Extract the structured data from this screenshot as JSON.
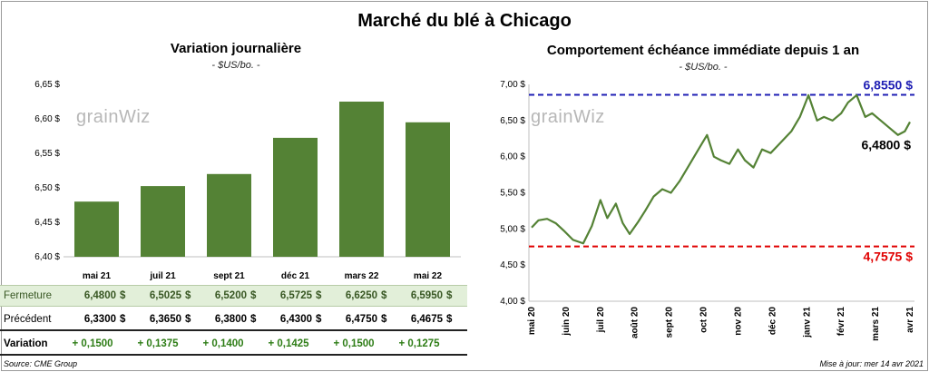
{
  "title": "Marché du blé à Chicago",
  "left": {
    "title": "Variation journalière",
    "unit": "- $US/bo. -",
    "watermark": "grainWiz"
  },
  "right": {
    "title": "Comportement  échéance immédiate depuis 1 an",
    "unit": "- $US/bo. -",
    "watermark": "grainWiz"
  },
  "table": {
    "rows": [
      {
        "label": "Fermeture",
        "values": [
          "6,4800",
          "6,5025",
          "6,5200",
          "6,5725",
          "6,6250",
          "6,5950"
        ],
        "suffix": "$"
      },
      {
        "label": "Précédent",
        "values": [
          "6,3300",
          "6,3650",
          "6,3800",
          "6,4300",
          "6,4750",
          "6,4675"
        ],
        "suffix": "$"
      },
      {
        "label": "Variation",
        "values": [
          "+ 0,1500",
          "+ 0,1375",
          "+ 0,1400",
          "+ 0,1425",
          "+ 0,1500",
          "+ 0,1275"
        ]
      }
    ]
  },
  "footer": {
    "source": "Source: CME Group",
    "updated": "Mise à jour: mer 14 avr 2021"
  },
  "colors": {
    "bar": "#548235",
    "line": "#548235",
    "max_line": "#1f1fb4",
    "min_line": "#e00000",
    "table_green": "#e2efd9",
    "variation_text": "#2e7d16"
  },
  "chart_data": [
    {
      "type": "bar",
      "title": "Variation journalière",
      "categories": [
        "mai 21",
        "juil 21",
        "sept 21",
        "déc 21",
        "mars 22",
        "mai 22"
      ],
      "values": [
        6.48,
        6.5025,
        6.52,
        6.5725,
        6.625,
        6.595
      ],
      "ylim": [
        6.4,
        6.65
      ],
      "yticks": [
        "6,40 $",
        "6,45 $",
        "6,50 $",
        "6,55 $",
        "6,60 $",
        "6,65 $"
      ],
      "grid": false
    },
    {
      "type": "line",
      "title": "Comportement  échéance immédiate depuis 1 an",
      "ylim": [
        4.0,
        7.0
      ],
      "yticks": [
        "4,00 $",
        "4,50 $",
        "5,00 $",
        "5,50 $",
        "6,00 $",
        "6,50 $",
        "7,00 $"
      ],
      "xticks": [
        "mai 20",
        "juin 20",
        "juil 20",
        "août 20",
        "sept 20",
        "oct 20",
        "nov 20",
        "déc 20",
        "janv 21",
        "févr 21",
        "mars 21",
        "avr 21"
      ],
      "series": [
        {
          "x": [
            0,
            0.2,
            0.45,
            0.7,
            0.95,
            1.2,
            1.5,
            1.75,
            2.0,
            2.2,
            2.45,
            2.65,
            2.85,
            3.1,
            3.3,
            3.55,
            3.8,
            4.05,
            4.3,
            4.6,
            4.85,
            5.1,
            5.3,
            5.5,
            5.75,
            6.0,
            6.2,
            6.45,
            6.7,
            6.95,
            7.15,
            7.35,
            7.55,
            7.8,
            8.05,
            8.3,
            8.5,
            8.75,
            9.0,
            9.2,
            9.45,
            9.7,
            9.9,
            10.15,
            10.4,
            10.65,
            10.85,
            11.0
          ],
          "values": [
            5.02,
            5.12,
            5.14,
            5.08,
            4.97,
            4.85,
            4.8,
            5.04,
            5.4,
            5.15,
            5.35,
            5.08,
            4.93,
            5.1,
            5.25,
            5.45,
            5.55,
            5.5,
            5.66,
            5.9,
            6.1,
            6.3,
            6.0,
            5.95,
            5.9,
            6.1,
            5.95,
            5.85,
            6.1,
            6.05,
            6.15,
            6.25,
            6.35,
            6.55,
            6.85,
            6.5,
            6.55,
            6.5,
            6.6,
            6.75,
            6.85,
            6.55,
            6.6,
            6.5,
            6.4,
            6.3,
            6.35,
            6.48
          ],
          "name": ""
        }
      ],
      "reference_lines": [
        {
          "value": 6.855,
          "label": "6,8550 $"
        },
        {
          "value": 4.7575,
          "label": "4,7575 $"
        }
      ],
      "annotation": "6,4800 $"
    }
  ]
}
